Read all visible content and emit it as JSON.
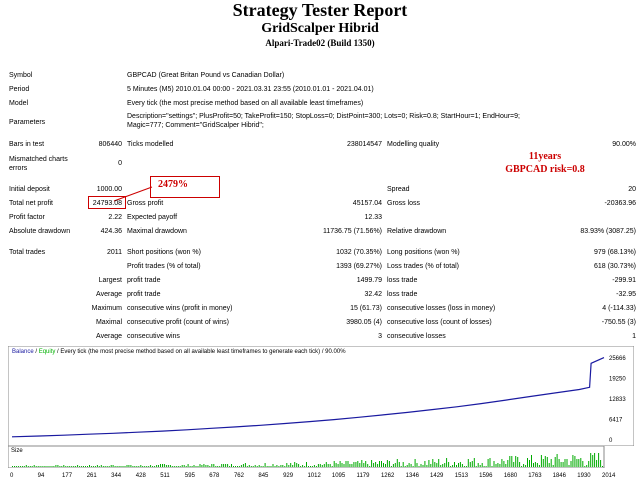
{
  "header": {
    "title": "Strategy Tester Report",
    "subtitle": "GridScalper Hibrid",
    "build": "Alpari-Trade02 (Build 1350)"
  },
  "info": {
    "symbol_label": "Symbol",
    "symbol_value": "GBPCAD (Great Britan Pound vs Canadian Dollar)",
    "period_label": "Period",
    "period_value": "5 Minutes (M5) 2010.01.04 00:00 - 2021.03.31 23:55 (2010.01.01 - 2021.04.01)",
    "model_label": "Model",
    "model_value": "Every tick (the most precise method based on all available least timeframes)",
    "params_label": "Parameters",
    "params_value1": "Description=\"settings\"; PlusProfit=50; TakeProfit=150; StopLoss=0; DistPoint=300; Lots=0; Risk=0.8; StartHour=1; EndHour=9;",
    "params_value2": "Magic=777; Comment=\"GridScalper Hibrid\";"
  },
  "stats": {
    "bars_label": "Bars in test",
    "bars_value": "806440",
    "ticks_label": "Ticks modelled",
    "ticks_value": "238014547",
    "quality_label": "Modelling quality",
    "quality_value": "90.00%",
    "mismatch_label1": "Mismatched charts",
    "mismatch_label2": "errors",
    "mismatch_value": "0",
    "deposit_label": "Initial deposit",
    "deposit_value": "1000.00",
    "spread_label": "Spread",
    "spread_value": "20",
    "net_label": "Total net profit",
    "net_value": "24793.08",
    "gross_profit_label": "Gross profit",
    "gross_profit_value": "45157.04",
    "gross_loss_label": "Gross loss",
    "gross_loss_value": "-20363.96",
    "pf_label": "Profit factor",
    "pf_value": "2.22",
    "payoff_label": "Expected payoff",
    "payoff_value": "12.33",
    "abs_dd_label": "Absolute drawdown",
    "abs_dd_value": "424.36",
    "max_dd_label": "Maximal drawdown",
    "max_dd_value": "11736.75 (71.56%)",
    "rel_dd_label": "Relative drawdown",
    "rel_dd_value": "83.93% (3087.25)",
    "trades_label": "Total trades",
    "trades_value": "2011",
    "short_label": "Short positions (won %)",
    "short_value": "1032 (70.35%)",
    "long_label": "Long positions (won %)",
    "long_value": "979 (68.13%)",
    "pt_label": "Profit trades (% of total)",
    "pt_value": "1393 (69.27%)",
    "lt_label": "Loss trades (% of total)",
    "lt_value": "618 (30.73%)",
    "largest_label": "Largest",
    "lpt_label": "profit trade",
    "lpt_value": "1499.79",
    "llt_label": "loss trade",
    "llt_value": "-299.91",
    "average_label": "Average",
    "apt_label": "profit trade",
    "apt_value": "32.42",
    "alt_label": "loss trade",
    "alt_value": "-32.95",
    "maximum_label": "Maximum",
    "mcw_label": "consecutive wins (profit in money)",
    "mcw_value": "15 (61.73)",
    "mcl_label": "consecutive losses (loss in money)",
    "mcl_value": "4 (-114.33)",
    "maximal_label": "Maximal",
    "mcp_label": "consecutive profit (count of wins)",
    "mcp_value": "3980.05 (4)",
    "mclc_label": "consecutive loss (count of losses)",
    "mclc_value": "-750.55 (3)",
    "average2_label": "Average",
    "acw_label": "consecutive wins",
    "acw_value": "3",
    "acl_label": "consecutive losses",
    "acl_value": "1"
  },
  "annotations": {
    "pct": "2479%",
    "years": "11years",
    "pair": "GBPCAD risk=0.8"
  },
  "chart": {
    "head_balance": "Balance",
    "head_sep": " / ",
    "head_equity": "Equity",
    "head_rest": " / Every tick (the most precise method based on all available least timeframes to generate each tick) / 90.00%",
    "y_ticks": [
      "25666",
      "19250",
      "12833",
      "6417",
      "0"
    ],
    "x_ticks": [
      "0",
      "94",
      "177",
      "261",
      "344",
      "428",
      "511",
      "595",
      "678",
      "762",
      "845",
      "929",
      "1012",
      "1095",
      "1179",
      "1262",
      "1346",
      "1429",
      "1513",
      "1596",
      "1680",
      "1763",
      "1846",
      "1930",
      "2014"
    ],
    "size_label": "Size",
    "balance_color": "#1a1aa0",
    "equity_color": "#00b000",
    "volume_color": "#00aa00"
  },
  "chart_data": {
    "type": "line",
    "title": "",
    "x": [
      0,
      94,
      177,
      261,
      344,
      428,
      511,
      595,
      678,
      762,
      845,
      929,
      1012,
      1095,
      1179,
      1262,
      1346,
      1429,
      1513,
      1596,
      1680,
      1763,
      1846,
      1930,
      1965,
      1970,
      2014
    ],
    "series": [
      {
        "name": "Balance",
        "values": [
          1000,
          1250,
          1500,
          1800,
          2100,
          2450,
          2800,
          3200,
          3650,
          4100,
          4600,
          5150,
          5750,
          6400,
          7100,
          7850,
          8650,
          9500,
          10400,
          11400,
          12500,
          13600,
          14700,
          15800,
          16500,
          24000,
          25793
        ]
      }
    ],
    "ylim": [
      0,
      25666
    ],
    "xlabel": "",
    "ylabel": ""
  }
}
